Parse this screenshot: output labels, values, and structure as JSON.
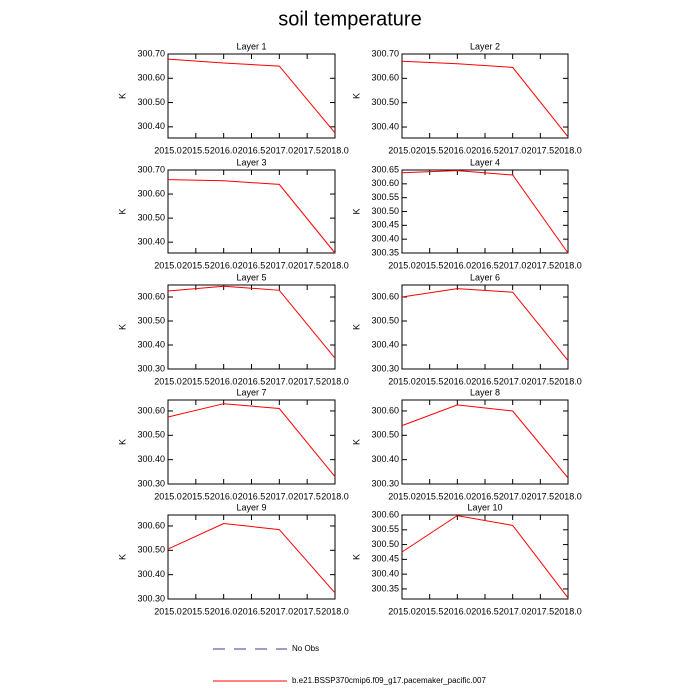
{
  "title": "soil temperature",
  "legend": [
    {
      "name": "No Obs",
      "color": "#3b3b8f",
      "dash": true
    },
    {
      "name": "b.e21.BSSP370cmip6.f09_g17.pacemaker_pacific.007",
      "color": "#ff0000",
      "dash": false
    }
  ],
  "chart_data": [
    {
      "type": "line",
      "title": "Layer 1",
      "ylabel": "K",
      "x": [
        2015,
        2016,
        2017,
        2018
      ],
      "values": [
        300.679,
        300.663,
        300.65,
        300.375
      ],
      "color": "#ff0000",
      "xlim": [
        2015,
        2018
      ],
      "xticks": [
        {
          "value": 2015,
          "label": "2015.0"
        },
        {
          "value": 2015.5,
          "label": "2015.5"
        },
        {
          "value": 2016,
          "label": "2016.0"
        },
        {
          "value": 2016.5,
          "label": "2016.5"
        },
        {
          "value": 2017,
          "label": "2017.0"
        },
        {
          "value": 2017.5,
          "label": "2017.5"
        },
        {
          "value": 2018,
          "label": "2018.0"
        }
      ],
      "ylim": [
        300.354,
        300.7
      ],
      "yticks": [
        {
          "value": 300.4,
          "label": "300.40"
        },
        {
          "value": 300.5,
          "label": "300.50"
        },
        {
          "value": 300.6,
          "label": "300.60"
        },
        {
          "value": 300.7,
          "label": "300.70"
        }
      ]
    },
    {
      "type": "line",
      "title": "Layer 2",
      "ylabel": "K",
      "x": [
        2015,
        2016,
        2017,
        2018
      ],
      "values": [
        300.67,
        300.66,
        300.645,
        300.36
      ],
      "color": "#ff0000",
      "xlim": [
        2015,
        2018
      ],
      "xticks": [
        {
          "value": 2015,
          "label": "2015.0"
        },
        {
          "value": 2015.5,
          "label": "2015.5"
        },
        {
          "value": 2016,
          "label": "2016.0"
        },
        {
          "value": 2016.5,
          "label": "2016.5"
        },
        {
          "value": 2017,
          "label": "2017.0"
        },
        {
          "value": 2017.5,
          "label": "2017.5"
        },
        {
          "value": 2018,
          "label": "2018.0"
        }
      ],
      "ylim": [
        300.355,
        300.7
      ],
      "yticks": [
        {
          "value": 300.4,
          "label": "300.40"
        },
        {
          "value": 300.5,
          "label": "300.50"
        },
        {
          "value": 300.6,
          "label": "300.60"
        },
        {
          "value": 300.7,
          "label": "300.70"
        }
      ]
    },
    {
      "type": "line",
      "title": "Layer 3",
      "ylabel": "K",
      "x": [
        2015,
        2016,
        2017,
        2018
      ],
      "values": [
        300.66,
        300.655,
        300.64,
        300.355
      ],
      "color": "#ff0000",
      "xlim": [
        2015,
        2018
      ],
      "xticks": [
        {
          "value": 2015,
          "label": "2015.0"
        },
        {
          "value": 2015.5,
          "label": "2015.5"
        },
        {
          "value": 2016,
          "label": "2016.0"
        },
        {
          "value": 2016.5,
          "label": "2016.5"
        },
        {
          "value": 2017,
          "label": "2017.0"
        },
        {
          "value": 2017.5,
          "label": "2017.5"
        },
        {
          "value": 2018,
          "label": "2018.0"
        }
      ],
      "ylim": [
        300.355,
        300.7
      ],
      "yticks": [
        {
          "value": 300.4,
          "label": "300.40"
        },
        {
          "value": 300.5,
          "label": "300.50"
        },
        {
          "value": 300.6,
          "label": "300.60"
        },
        {
          "value": 300.7,
          "label": "300.70"
        }
      ]
    },
    {
      "type": "line",
      "title": "Layer 4",
      "ylabel": "K",
      "x": [
        2015,
        2016,
        2017,
        2018
      ],
      "values": [
        300.64,
        300.648,
        300.632,
        300.35
      ],
      "color": "#ff0000",
      "xlim": [
        2015,
        2018
      ],
      "xticks": [
        {
          "value": 2015,
          "label": "2015.0"
        },
        {
          "value": 2015.5,
          "label": "2015.5"
        },
        {
          "value": 2016,
          "label": "2016.0"
        },
        {
          "value": 2016.5,
          "label": "2016.5"
        },
        {
          "value": 2017,
          "label": "2017.0"
        },
        {
          "value": 2017.5,
          "label": "2017.5"
        },
        {
          "value": 2018,
          "label": "2018.0"
        }
      ],
      "ylim": [
        300.35,
        300.65
      ],
      "yticks": [
        {
          "value": 300.35,
          "label": "300.35"
        },
        {
          "value": 300.4,
          "label": "300.40"
        },
        {
          "value": 300.45,
          "label": "300.45"
        },
        {
          "value": 300.5,
          "label": "300.50"
        },
        {
          "value": 300.55,
          "label": "300.55"
        },
        {
          "value": 300.6,
          "label": "300.60"
        },
        {
          "value": 300.65,
          "label": "300.65"
        }
      ]
    },
    {
      "type": "line",
      "title": "Layer 5",
      "ylabel": "K",
      "x": [
        2015,
        2016,
        2017,
        2018
      ],
      "values": [
        300.625,
        300.645,
        300.628,
        300.345
      ],
      "color": "#ff0000",
      "xlim": [
        2015,
        2018
      ],
      "xticks": [
        {
          "value": 2015,
          "label": "2015.0"
        },
        {
          "value": 2015.5,
          "label": "2015.5"
        },
        {
          "value": 2016,
          "label": "2016.0"
        },
        {
          "value": 2016.5,
          "label": "2016.5"
        },
        {
          "value": 2017,
          "label": "2017.0"
        },
        {
          "value": 2017.5,
          "label": "2017.5"
        },
        {
          "value": 2018,
          "label": "2018.0"
        }
      ],
      "ylim": [
        300.3,
        300.65
      ],
      "yticks": [
        {
          "value": 300.3,
          "label": "300.30"
        },
        {
          "value": 300.4,
          "label": "300.40"
        },
        {
          "value": 300.5,
          "label": "300.50"
        },
        {
          "value": 300.6,
          "label": "300.60"
        }
      ]
    },
    {
      "type": "line",
      "title": "Layer 6",
      "ylabel": "K",
      "x": [
        2015,
        2016,
        2017,
        2018
      ],
      "values": [
        300.6,
        300.635,
        300.62,
        300.335
      ],
      "color": "#ff0000",
      "xlim": [
        2015,
        2018
      ],
      "xticks": [
        {
          "value": 2015,
          "label": "2015.0"
        },
        {
          "value": 2015.5,
          "label": "2015.5"
        },
        {
          "value": 2016,
          "label": "2016.0"
        },
        {
          "value": 2016.5,
          "label": "2016.5"
        },
        {
          "value": 2017,
          "label": "2017.0"
        },
        {
          "value": 2017.5,
          "label": "2017.5"
        },
        {
          "value": 2018,
          "label": "2018.0"
        }
      ],
      "ylim": [
        300.3,
        300.65
      ],
      "yticks": [
        {
          "value": 300.3,
          "label": "300.30"
        },
        {
          "value": 300.4,
          "label": "300.40"
        },
        {
          "value": 300.5,
          "label": "300.50"
        },
        {
          "value": 300.6,
          "label": "300.60"
        }
      ]
    },
    {
      "type": "line",
      "title": "Layer 7",
      "ylabel": "K",
      "x": [
        2015,
        2016,
        2017,
        2018
      ],
      "values": [
        300.575,
        300.63,
        300.61,
        300.33
      ],
      "color": "#ff0000",
      "xlim": [
        2015,
        2018
      ],
      "xticks": [
        {
          "value": 2015,
          "label": "2015.0"
        },
        {
          "value": 2015.5,
          "label": "2015.5"
        },
        {
          "value": 2016,
          "label": "2016.0"
        },
        {
          "value": 2016.5,
          "label": "2016.5"
        },
        {
          "value": 2017,
          "label": "2017.0"
        },
        {
          "value": 2017.5,
          "label": "2017.5"
        },
        {
          "value": 2018,
          "label": "2018.0"
        }
      ],
      "ylim": [
        300.3,
        300.645
      ],
      "yticks": [
        {
          "value": 300.3,
          "label": "300.30"
        },
        {
          "value": 300.4,
          "label": "300.40"
        },
        {
          "value": 300.5,
          "label": "300.50"
        },
        {
          "value": 300.6,
          "label": "300.60"
        }
      ]
    },
    {
      "type": "line",
      "title": "Layer 8",
      "ylabel": "K",
      "x": [
        2015,
        2016,
        2017,
        2018
      ],
      "values": [
        300.54,
        300.625,
        300.6,
        300.325
      ],
      "color": "#ff0000",
      "xlim": [
        2015,
        2018
      ],
      "xticks": [
        {
          "value": 2015,
          "label": "2015.0"
        },
        {
          "value": 2015.5,
          "label": "2015.5"
        },
        {
          "value": 2016,
          "label": "2016.0"
        },
        {
          "value": 2016.5,
          "label": "2016.5"
        },
        {
          "value": 2017,
          "label": "2017.0"
        },
        {
          "value": 2017.5,
          "label": "2017.5"
        },
        {
          "value": 2018,
          "label": "2018.0"
        }
      ],
      "ylim": [
        300.3,
        300.645
      ],
      "yticks": [
        {
          "value": 300.3,
          "label": "300.30"
        },
        {
          "value": 300.4,
          "label": "300.40"
        },
        {
          "value": 300.5,
          "label": "300.50"
        },
        {
          "value": 300.6,
          "label": "300.60"
        }
      ]
    },
    {
      "type": "line",
      "title": "Layer 9",
      "ylabel": "K",
      "x": [
        2015,
        2016,
        2017,
        2018
      ],
      "values": [
        300.505,
        300.61,
        300.585,
        300.325
      ],
      "color": "#ff0000",
      "xlim": [
        2015,
        2018
      ],
      "xticks": [
        {
          "value": 2015,
          "label": "2015.0"
        },
        {
          "value": 2015.5,
          "label": "2015.5"
        },
        {
          "value": 2016,
          "label": "2016.0"
        },
        {
          "value": 2016.5,
          "label": "2016.5"
        },
        {
          "value": 2017,
          "label": "2017.0"
        },
        {
          "value": 2017.5,
          "label": "2017.5"
        },
        {
          "value": 2018,
          "label": "2018.0"
        }
      ],
      "ylim": [
        300.3,
        300.645
      ],
      "yticks": [
        {
          "value": 300.3,
          "label": "300.30"
        },
        {
          "value": 300.4,
          "label": "300.40"
        },
        {
          "value": 300.5,
          "label": "300.50"
        },
        {
          "value": 300.6,
          "label": "300.60"
        }
      ]
    },
    {
      "type": "line",
      "title": "Layer 10",
      "ylabel": "K",
      "x": [
        2015,
        2016,
        2017,
        2018
      ],
      "values": [
        300.475,
        300.598,
        300.565,
        300.32
      ],
      "color": "#ff0000",
      "xlim": [
        2015,
        2018
      ],
      "xticks": [
        {
          "value": 2015,
          "label": "2015.0"
        },
        {
          "value": 2015.5,
          "label": "2015.5"
        },
        {
          "value": 2016,
          "label": "2016.0"
        },
        {
          "value": 2016.5,
          "label": "2016.5"
        },
        {
          "value": 2017,
          "label": "2017.0"
        },
        {
          "value": 2017.5,
          "label": "2017.5"
        },
        {
          "value": 2018,
          "label": "2018.0"
        }
      ],
      "ylim": [
        300.316,
        300.6
      ],
      "yticks": [
        {
          "value": 300.35,
          "label": "300.35"
        },
        {
          "value": 300.4,
          "label": "300.40"
        },
        {
          "value": 300.45,
          "label": "300.45"
        },
        {
          "value": 300.5,
          "label": "300.50"
        },
        {
          "value": 300.55,
          "label": "300.55"
        },
        {
          "value": 300.6,
          "label": "300.60"
        }
      ]
    }
  ]
}
